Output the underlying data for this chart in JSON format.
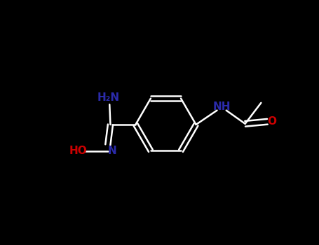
{
  "bg": "#000000",
  "bond_color": "#ffffff",
  "n_color": "#2b2baa",
  "o_color": "#cc0000",
  "font_size": 11,
  "fig_w": 4.55,
  "fig_h": 3.5,
  "dpi": 100,
  "lw": 1.8,
  "xlim": [
    -3.8,
    3.8
  ],
  "ylim": [
    -2.1,
    2.1
  ]
}
